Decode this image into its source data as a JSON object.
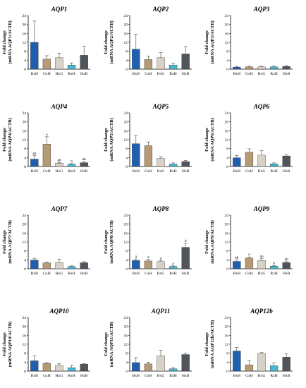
{
  "colors": {
    "BxH": "#1f5fb0",
    "GxH": "#b59a74",
    "HxG": "#d8d2c6",
    "RxH": "#47b6cf",
    "HxB": "#4f555a"
  },
  "chart_data": [
    {
      "type": "bar",
      "title": "AQP1",
      "ylabel_line1": "Fold change",
      "ylabel_line2": "(mRNA AQP1/ACTB)",
      "categories": [
        "BxH",
        "GxH",
        "HxG",
        "RxH",
        "HxB"
      ],
      "ylim": [
        0,
        24
      ],
      "yticks": [
        0,
        4,
        8,
        12,
        16,
        20,
        24
      ],
      "values": [
        12.0,
        4.5,
        5.1,
        1.8,
        6.2
      ],
      "errors": [
        9.5,
        1.5,
        2.0,
        1.0,
        4.0
      ],
      "annotations": [
        "",
        "",
        "",
        "",
        ""
      ]
    },
    {
      "type": "bar",
      "title": "AQP2",
      "ylabel_line1": "Fold change",
      "ylabel_line2": "(mRNA AQP2/ACTB)",
      "categories": [
        "BxH",
        "GxH",
        "HxG",
        "RxH",
        "HxB"
      ],
      "ylim": [
        0,
        24
      ],
      "yticks": [
        0,
        4,
        8,
        12,
        16,
        20,
        24
      ],
      "values": [
        8.9,
        4.3,
        5.1,
        1.8,
        6.8
      ],
      "errors": [
        6.8,
        1.5,
        2.3,
        0.9,
        3.3
      ],
      "annotations": [
        "",
        "",
        "",
        "",
        ""
      ]
    },
    {
      "type": "bar",
      "title": "AQP3",
      "ylabel_line1": "Fold change",
      "ylabel_line2": "(mRNA AQP3/ACTB)",
      "categories": [
        "BxH",
        "GxH",
        "HxG",
        "RxH",
        "HxB"
      ],
      "ylim": [
        0,
        24
      ],
      "yticks": [
        0,
        4,
        8,
        12,
        16,
        20,
        24
      ],
      "values": [
        0.9,
        1.0,
        1.0,
        1.0,
        1.2
      ],
      "errors": [
        0.3,
        0.3,
        0.3,
        0.4,
        0.4
      ],
      "annotations": [
        "",
        "",
        "",
        "",
        ""
      ]
    },
    {
      "type": "bar",
      "title": "AQP4",
      "ylabel_line1": "Fold change",
      "ylabel_line2": "(mRNA AQP4/ACTB)",
      "categories": [
        "BxH",
        "GxH",
        "HxG",
        "RxH",
        "HxB"
      ],
      "ylim": [
        0,
        24
      ],
      "yticks": [
        0,
        4,
        8,
        12,
        16,
        20,
        24
      ],
      "values": [
        3.3,
        10.0,
        1.5,
        1.0,
        1.7
      ],
      "errors": [
        1.5,
        3.3,
        0.3,
        0.3,
        0.5
      ],
      "annotations": [
        "ab",
        "a",
        "ab",
        "b",
        "ab"
      ]
    },
    {
      "type": "bar",
      "title": "AQP5",
      "ylabel_line1": "Fold change",
      "ylabel_line2": "(mRNA AQP5/ACTB)",
      "categories": [
        "BxH",
        "GxH",
        "HxG",
        "RxH",
        "HxB"
      ],
      "ylim": [
        0,
        24
      ],
      "yticks": [
        0,
        4,
        8,
        12,
        16,
        20,
        24
      ],
      "values": [
        10.2,
        9.3,
        3.6,
        1.1,
        2.2
      ],
      "errors": [
        3.5,
        1.7,
        0.8,
        0.5,
        0.5
      ],
      "annotations": [
        "",
        "",
        "",
        "",
        ""
      ]
    },
    {
      "type": "bar",
      "title": "AQP6",
      "ylabel_line1": "Fold change",
      "ylabel_line2": "(mRNA AQP6/ACTB)",
      "categories": [
        "BxH",
        "GxH",
        "HxG",
        "RxH",
        "HxB"
      ],
      "ylim": [
        0,
        24
      ],
      "yticks": [
        0,
        4,
        8,
        12,
        16,
        20,
        24
      ],
      "values": [
        3.9,
        6.4,
        5.1,
        1.2,
        4.7
      ],
      "errors": [
        1.0,
        1.5,
        2.0,
        0.4,
        0.5
      ],
      "annotations": [
        "",
        "",
        "",
        "",
        ""
      ]
    },
    {
      "type": "bar",
      "title": "AQP7",
      "ylabel_line1": "Fold change",
      "ylabel_line2": "(mRNA AQP7/ACTB)",
      "categories": [
        "BxH",
        "GxH",
        "HxG",
        "RxH",
        "HxB"
      ],
      "ylim": [
        0,
        24
      ],
      "yticks": [
        0,
        4,
        8,
        12,
        16,
        20,
        24
      ],
      "values": [
        3.9,
        2.6,
        2.8,
        1.0,
        2.7
      ],
      "errors": [
        0.8,
        0.3,
        1.5,
        0.3,
        0.5
      ],
      "annotations": [
        "",
        "",
        "",
        "",
        ""
      ]
    },
    {
      "type": "bar",
      "title": "AQP8",
      "ylabel_line1": "Fold change",
      "ylabel_line2": "(mRNA AQP8/ACTB)",
      "categories": [
        "BxH",
        "GxH",
        "HxG",
        "RxH",
        "HxB"
      ],
      "ylim": [
        0,
        24
      ],
      "yticks": [
        0,
        4,
        8,
        12,
        16,
        20,
        24
      ],
      "values": [
        3.7,
        3.5,
        3.2,
        1.0,
        9.6
      ],
      "errors": [
        0.7,
        0.7,
        0.4,
        0.3,
        1.8
      ],
      "annotations": [
        "a",
        "a",
        "a",
        "a",
        "b"
      ]
    },
    {
      "type": "bar",
      "title": "AQP9",
      "ylabel_line1": "Fold change",
      "ylabel_line2": "(mRNA AQP9/ACTB)",
      "categories": [
        "BxH",
        "GxH",
        "HxG",
        "RxH",
        "HxB"
      ],
      "ylim": [
        0,
        24
      ],
      "yticks": [
        0,
        4,
        8,
        12,
        16,
        20,
        24
      ],
      "values": [
        3.3,
        4.8,
        3.7,
        1.2,
        2.8
      ],
      "errors": [
        0.6,
        0.5,
        0.8,
        0.3,
        0.4
      ],
      "annotations": [
        "ab",
        "a",
        "ab",
        "b",
        "ab"
      ]
    },
    {
      "type": "bar",
      "title": "AQP10",
      "ylabel_line1": "Fold change",
      "ylabel_line2": "(mRNA AQP10/ACTB)",
      "categories": [
        "BxH",
        "GxH",
        "HxG",
        "RxH",
        "HxB"
      ],
      "ylim": [
        0,
        24
      ],
      "yticks": [
        0,
        4,
        8,
        12,
        16,
        20,
        24
      ],
      "values": [
        4.6,
        3.4,
        2.6,
        1.5,
        3.1
      ],
      "errors": [
        2.2,
        0.4,
        0.8,
        1.0,
        0.3
      ],
      "annotations": [
        "",
        "",
        "",
        "",
        ""
      ]
    },
    {
      "type": "bar",
      "title": "AQP11",
      "ylabel_line1": "Fold change",
      "ylabel_line2": "(mRNA AQP11/ACTB)",
      "categories": [
        "BxH",
        "GxH",
        "HxG",
        "RxH",
        "HxB"
      ],
      "ylim": [
        0,
        24
      ],
      "yticks": [
        0,
        4,
        8,
        12,
        16,
        20,
        24
      ],
      "values": [
        3.8,
        3.2,
        6.8,
        1.0,
        7.4
      ],
      "errors": [
        2.2,
        0.8,
        2.5,
        0.5,
        0.7
      ],
      "annotations": [
        "",
        "",
        "",
        "",
        ""
      ]
    },
    {
      "type": "bar",
      "title": "AQP12b",
      "ylabel_line1": "Fold change",
      "ylabel_line2": "(mRNA AQP12b/ACTB)",
      "categories": [
        "BxH",
        "GxH",
        "HxG",
        "RxH",
        "HxB"
      ],
      "ylim": [
        0,
        24
      ],
      "yticks": [
        0,
        4,
        8,
        12,
        16,
        20,
        24
      ],
      "values": [
        9.0,
        2.8,
        7.8,
        2.4,
        6.2
      ],
      "errors": [
        1.6,
        1.8,
        0.5,
        1.2,
        1.5
      ],
      "annotations": [
        "",
        "",
        "",
        "",
        ""
      ]
    }
  ]
}
